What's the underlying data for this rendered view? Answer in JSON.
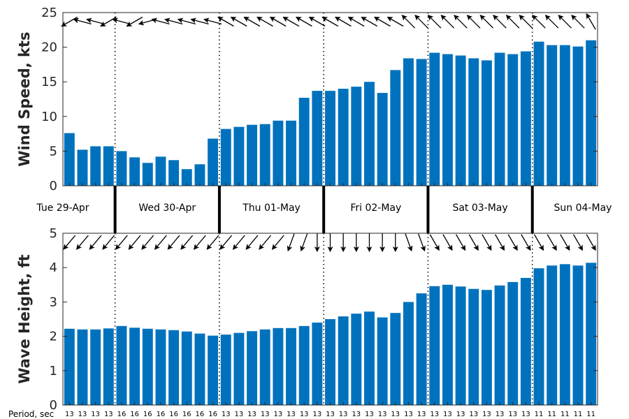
{
  "chart_data": [
    {
      "type": "bar",
      "ylabel": "Wind Speed, kts",
      "ylim": [
        0,
        25
      ],
      "yticks": [
        0,
        5,
        10,
        15,
        20,
        25
      ],
      "bar_color": "#0072BD",
      "values": [
        7.6,
        5.2,
        5.7,
        5.7,
        5.0,
        4.1,
        3.3,
        4.2,
        3.7,
        2.4,
        3.1,
        6.8,
        8.2,
        8.5,
        8.8,
        8.9,
        9.4,
        9.4,
        12.7,
        13.7,
        13.7,
        14.0,
        14.3,
        15.0,
        13.4,
        16.7,
        18.4,
        18.3,
        19.2,
        19.0,
        18.8,
        18.4,
        18.1,
        19.2,
        19.0,
        19.4,
        20.8,
        20.3,
        20.3,
        20.1,
        21.0
      ],
      "direction_arrows_deg": [
        240,
        285,
        285,
        240,
        285,
        240,
        255,
        285,
        285,
        285,
        285,
        285,
        300,
        300,
        300,
        300,
        300,
        300,
        300,
        300,
        300,
        300,
        300,
        300,
        300,
        300,
        315,
        315,
        315,
        315,
        315,
        315,
        315,
        315,
        315,
        315,
        315,
        315,
        315,
        315,
        330
      ]
    },
    {
      "type": "bar",
      "ylabel": "Wave Height, ft",
      "ylim": [
        0,
        5
      ],
      "yticks": [
        0,
        1,
        2,
        3,
        4,
        5
      ],
      "bar_color": "#0072BD",
      "values": [
        2.22,
        2.2,
        2.2,
        2.23,
        2.3,
        2.25,
        2.22,
        2.2,
        2.18,
        2.14,
        2.08,
        2.02,
        2.05,
        2.1,
        2.15,
        2.2,
        2.24,
        2.24,
        2.3,
        2.4,
        2.5,
        2.58,
        2.66,
        2.72,
        2.55,
        2.68,
        3.0,
        3.25,
        3.46,
        3.5,
        3.45,
        3.38,
        3.35,
        3.48,
        3.58,
        3.7,
        3.98,
        4.06,
        4.1,
        4.06,
        4.14
      ],
      "direction_arrows_deg": [
        220,
        220,
        220,
        220,
        220,
        220,
        220,
        220,
        220,
        220,
        220,
        220,
        220,
        220,
        220,
        220,
        220,
        200,
        200,
        180,
        180,
        180,
        180,
        180,
        180,
        180,
        160,
        160,
        150,
        150,
        150,
        150,
        150,
        150,
        150,
        150,
        150,
        150,
        150,
        150,
        150
      ]
    }
  ],
  "days": [
    "Tue 29-Apr",
    "Wed 30-Apr",
    "Thu 01-May",
    "Fri 02-May",
    "Sat 03-May",
    "Sun 04-May"
  ],
  "period_label": "Period, sec",
  "periods": [
    "13",
    "13",
    "13",
    "13",
    "16",
    "16",
    "16",
    "16",
    "16",
    "16",
    "16",
    "16",
    "13",
    "13",
    "13",
    "13",
    "13",
    "13",
    "13",
    "13",
    "13",
    "13",
    "13",
    "13",
    "13",
    "13",
    "13",
    "13",
    "13",
    "13",
    "13",
    "13",
    "13",
    "13",
    "13",
    "13",
    "11",
    "11",
    "11",
    "11",
    "11"
  ],
  "day_boundaries": [
    4,
    12,
    20,
    28,
    36
  ]
}
